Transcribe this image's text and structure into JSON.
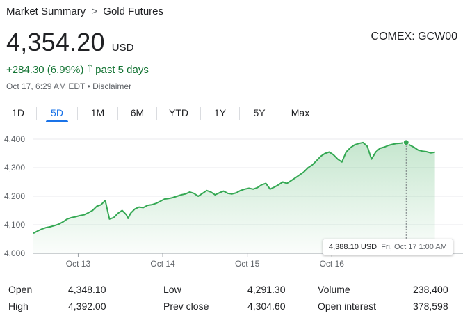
{
  "breadcrumb": {
    "parent": "Market Summary",
    "separator": ">",
    "current": "Gold Futures"
  },
  "quote": {
    "price": "4,354.20",
    "currency": "USD",
    "ticker": "COMEX: GCW00",
    "change": "+284.30 (6.99%)",
    "period": "past 5 days",
    "timestamp": "Oct 17, 6:29 AM EDT",
    "bullet": "•",
    "disclaimer": "Disclaimer"
  },
  "ranges": [
    {
      "label": "1D",
      "active": false
    },
    {
      "label": "5D",
      "active": true
    },
    {
      "label": "1M",
      "active": false
    },
    {
      "label": "6M",
      "active": false
    },
    {
      "label": "YTD",
      "active": false
    },
    {
      "label": "1Y",
      "active": false
    },
    {
      "label": "5Y",
      "active": false
    },
    {
      "label": "Max",
      "active": false
    }
  ],
  "tooltip": {
    "value": "4,388.10 USD",
    "date": "Fri, Oct 17 1:00 AM"
  },
  "colors": {
    "line": "#34a853",
    "positive": "#137333",
    "accent": "#1a73e8"
  },
  "chart_data": {
    "type": "area",
    "ylim": [
      4000,
      4400
    ],
    "yticks": [
      4000,
      4100,
      4200,
      4300,
      4400
    ],
    "ytick_labels": [
      "4,000",
      "4,100",
      "4,200",
      "4,300",
      "4,400"
    ],
    "xlim": [
      0,
      5
    ],
    "xticks": [
      0.53,
      1.53,
      2.53,
      3.53
    ],
    "xtick_labels": [
      "Oct 13",
      "Oct 14",
      "Oct 15",
      "Oct 16"
    ],
    "grid": true,
    "hover_point": {
      "x": 4.41,
      "y": 4388.1
    },
    "series": [
      {
        "x": [
          0,
          0.05,
          0.1,
          0.15,
          0.2,
          0.25,
          0.3,
          0.35,
          0.4,
          0.45,
          0.5,
          0.55,
          0.6,
          0.65,
          0.7,
          0.75,
          0.8,
          0.85,
          0.9,
          0.95,
          1.0,
          1.05,
          1.1,
          1.12,
          1.15,
          1.2,
          1.25,
          1.3,
          1.35,
          1.4,
          1.45,
          1.5,
          1.55,
          1.6,
          1.65,
          1.7,
          1.75,
          1.8,
          1.85,
          1.9,
          1.95,
          2.0,
          2.05,
          2.1,
          2.15,
          2.2,
          2.25,
          2.3,
          2.35,
          2.4,
          2.45,
          2.5,
          2.55,
          2.6,
          2.65,
          2.7,
          2.75,
          2.8,
          2.85,
          2.9,
          2.95,
          3.0,
          3.05,
          3.1,
          3.15,
          3.2,
          3.25,
          3.3,
          3.35,
          3.4,
          3.45,
          3.5,
          3.55,
          3.6,
          3.65,
          3.7,
          3.75,
          3.8,
          3.85,
          3.9,
          3.95,
          4.0,
          4.05,
          4.1,
          4.15,
          4.2,
          4.25,
          4.3,
          4.35,
          4.4,
          4.41,
          4.45,
          4.5,
          4.55,
          4.6,
          4.65,
          4.7,
          4.75
        ],
        "y": [
          4070,
          4078,
          4085,
          4090,
          4093,
          4097,
          4102,
          4110,
          4120,
          4125,
          4128,
          4132,
          4135,
          4142,
          4150,
          4165,
          4170,
          4185,
          4120,
          4125,
          4140,
          4150,
          4135,
          4122,
          4140,
          4155,
          4162,
          4160,
          4168,
          4170,
          4175,
          4182,
          4190,
          4192,
          4195,
          4200,
          4205,
          4208,
          4215,
          4210,
          4200,
          4210,
          4220,
          4215,
          4205,
          4212,
          4218,
          4210,
          4208,
          4212,
          4220,
          4225,
          4228,
          4225,
          4230,
          4240,
          4245,
          4225,
          4232,
          4240,
          4250,
          4245,
          4255,
          4265,
          4275,
          4285,
          4300,
          4310,
          4325,
          4340,
          4350,
          4355,
          4345,
          4330,
          4320,
          4355,
          4370,
          4380,
          4385,
          4388,
          4375,
          4330,
          4355,
          4368,
          4372,
          4378,
          4382,
          4385,
          4386,
          4388.1,
          4388.1,
          4380,
          4372,
          4362,
          4358,
          4356,
          4352,
          4354.2
        ]
      }
    ]
  },
  "stats": [
    {
      "label": "Open",
      "value": "4,348.10"
    },
    {
      "label": "High",
      "value": "4,392.00"
    },
    {
      "label": "Low",
      "value": "4,291.30"
    },
    {
      "label": "Prev close",
      "value": "4,304.60"
    },
    {
      "label": "Volume",
      "value": "238,400"
    },
    {
      "label": "Open interest",
      "value": "378,598"
    }
  ]
}
